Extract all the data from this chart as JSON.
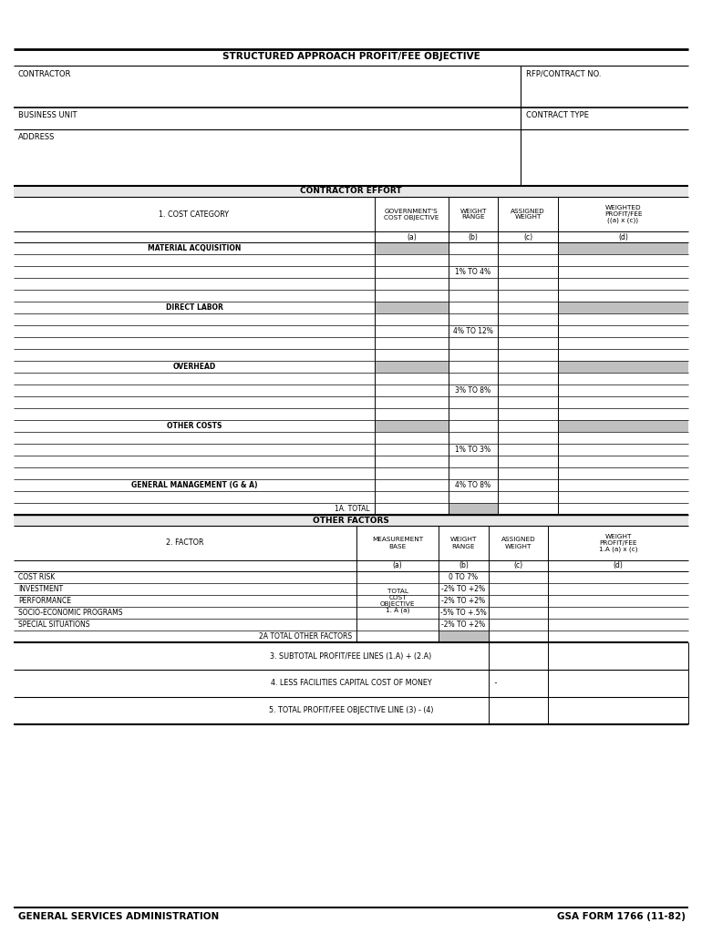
{
  "title": "STRUCTURED APPROACH PROFIT/FEE OBJECTIVE",
  "bg_color": "#ffffff",
  "gray_fill": "#c0c0c0",
  "light_gray": "#e8e8e8",
  "header_labels": {
    "contractor": "CONTRACTOR",
    "rfp": "RFP/CONTRACT NO.",
    "business_unit": "BUSINESS UNIT",
    "contract_type": "CONTRACT TYPE",
    "address": "ADDRESS"
  },
  "section1_header": "CONTRACTOR EFFORT",
  "col_headers": {
    "cost_category": "1. COST CATEGORY",
    "gov_cost": "GOVERNMENT'S\nCOST OBJECTIVE",
    "weight_range": "WEIGHT\nRANGE",
    "assigned_weight": "ASSIGNED\nWEIGHT",
    "weighted_profit": "WEIGHTED\nPROFIT/FEE\n((a) x (c))"
  },
  "cost_rows": [
    {
      "label": "MATERIAL ACQUISITION",
      "gray": true,
      "weight": "",
      "bold": true
    },
    {
      "label": "",
      "gray": false,
      "weight": "",
      "bold": false
    },
    {
      "label": "",
      "gray": false,
      "weight": "1% TO 4%",
      "bold": false
    },
    {
      "label": "",
      "gray": false,
      "weight": "",
      "bold": false
    },
    {
      "label": "",
      "gray": false,
      "weight": "",
      "bold": false
    },
    {
      "label": "DIRECT LABOR",
      "gray": true,
      "weight": "",
      "bold": true
    },
    {
      "label": "",
      "gray": false,
      "weight": "",
      "bold": false
    },
    {
      "label": "",
      "gray": false,
      "weight": "4% TO 12%",
      "bold": false
    },
    {
      "label": "",
      "gray": false,
      "weight": "",
      "bold": false
    },
    {
      "label": "",
      "gray": false,
      "weight": "",
      "bold": false
    },
    {
      "label": "OVERHEAD",
      "gray": true,
      "weight": "",
      "bold": true
    },
    {
      "label": "",
      "gray": false,
      "weight": "",
      "bold": false
    },
    {
      "label": "",
      "gray": false,
      "weight": "3% TO 8%",
      "bold": false
    },
    {
      "label": "",
      "gray": false,
      "weight": "",
      "bold": false
    },
    {
      "label": "",
      "gray": false,
      "weight": "",
      "bold": false
    },
    {
      "label": "OTHER COSTS",
      "gray": true,
      "weight": "",
      "bold": true
    },
    {
      "label": "",
      "gray": false,
      "weight": "",
      "bold": false
    },
    {
      "label": "",
      "gray": false,
      "weight": "1% TO 3%",
      "bold": false
    },
    {
      "label": "",
      "gray": false,
      "weight": "",
      "bold": false
    },
    {
      "label": "",
      "gray": false,
      "weight": "",
      "bold": false
    },
    {
      "label": "GENERAL MANAGEMENT (G & A)",
      "gray": false,
      "weight": "4% TO 8%",
      "bold": true
    },
    {
      "label": "",
      "gray": false,
      "weight": "",
      "bold": false
    },
    {
      "label": "1A. TOTAL",
      "gray": false,
      "weight": "",
      "bold": false,
      "is_total": true
    }
  ],
  "section2_header": "OTHER FACTORS",
  "col2_headers": {
    "factor": "2. FACTOR",
    "meas_base": "MEASUREMENT\nBASE",
    "weight_range": "WEIGHT\nRANGE",
    "assigned_weight": "ASSIGNED\nWEIGHT",
    "weight_profit": "WEIGHT\nPROFIT/FEE\n1.A (a) x (c)"
  },
  "factor_rows": [
    {
      "label": "COST RISK",
      "weight": "0 TO 7%"
    },
    {
      "label": "INVESTMENT",
      "weight": "-2% TO +2%"
    },
    {
      "label": "PERFORMANCE",
      "weight": "-2% TO +2%"
    },
    {
      "label": "SOCIO-ECONOMIC PROGRAMS",
      "weight": "-5% TO +.5%"
    },
    {
      "label": "SPECIAL SITUATIONS",
      "weight": "-2% TO +2%"
    }
  ],
  "meas_base_label": "TOTAL\nCOST\nOBJECTIVE\n1. A (a)",
  "total_other_factors": "2A TOTAL OTHER FACTORS",
  "subtotal_line": "3. SUBTOTAL PROFIT/FEE LINES (1.A) + (2.A)",
  "facilities_line": "4. LESS FACILITIES CAPITAL COST OF MONEY",
  "total_line": "5. TOTAL PROFIT/FEE OBJECTIVE LINE (3) - (4)",
  "footer_left": "GENERAL SERVICES ADMINISTRATION",
  "footer_right": "GSA FORM 1766 (11-82)"
}
